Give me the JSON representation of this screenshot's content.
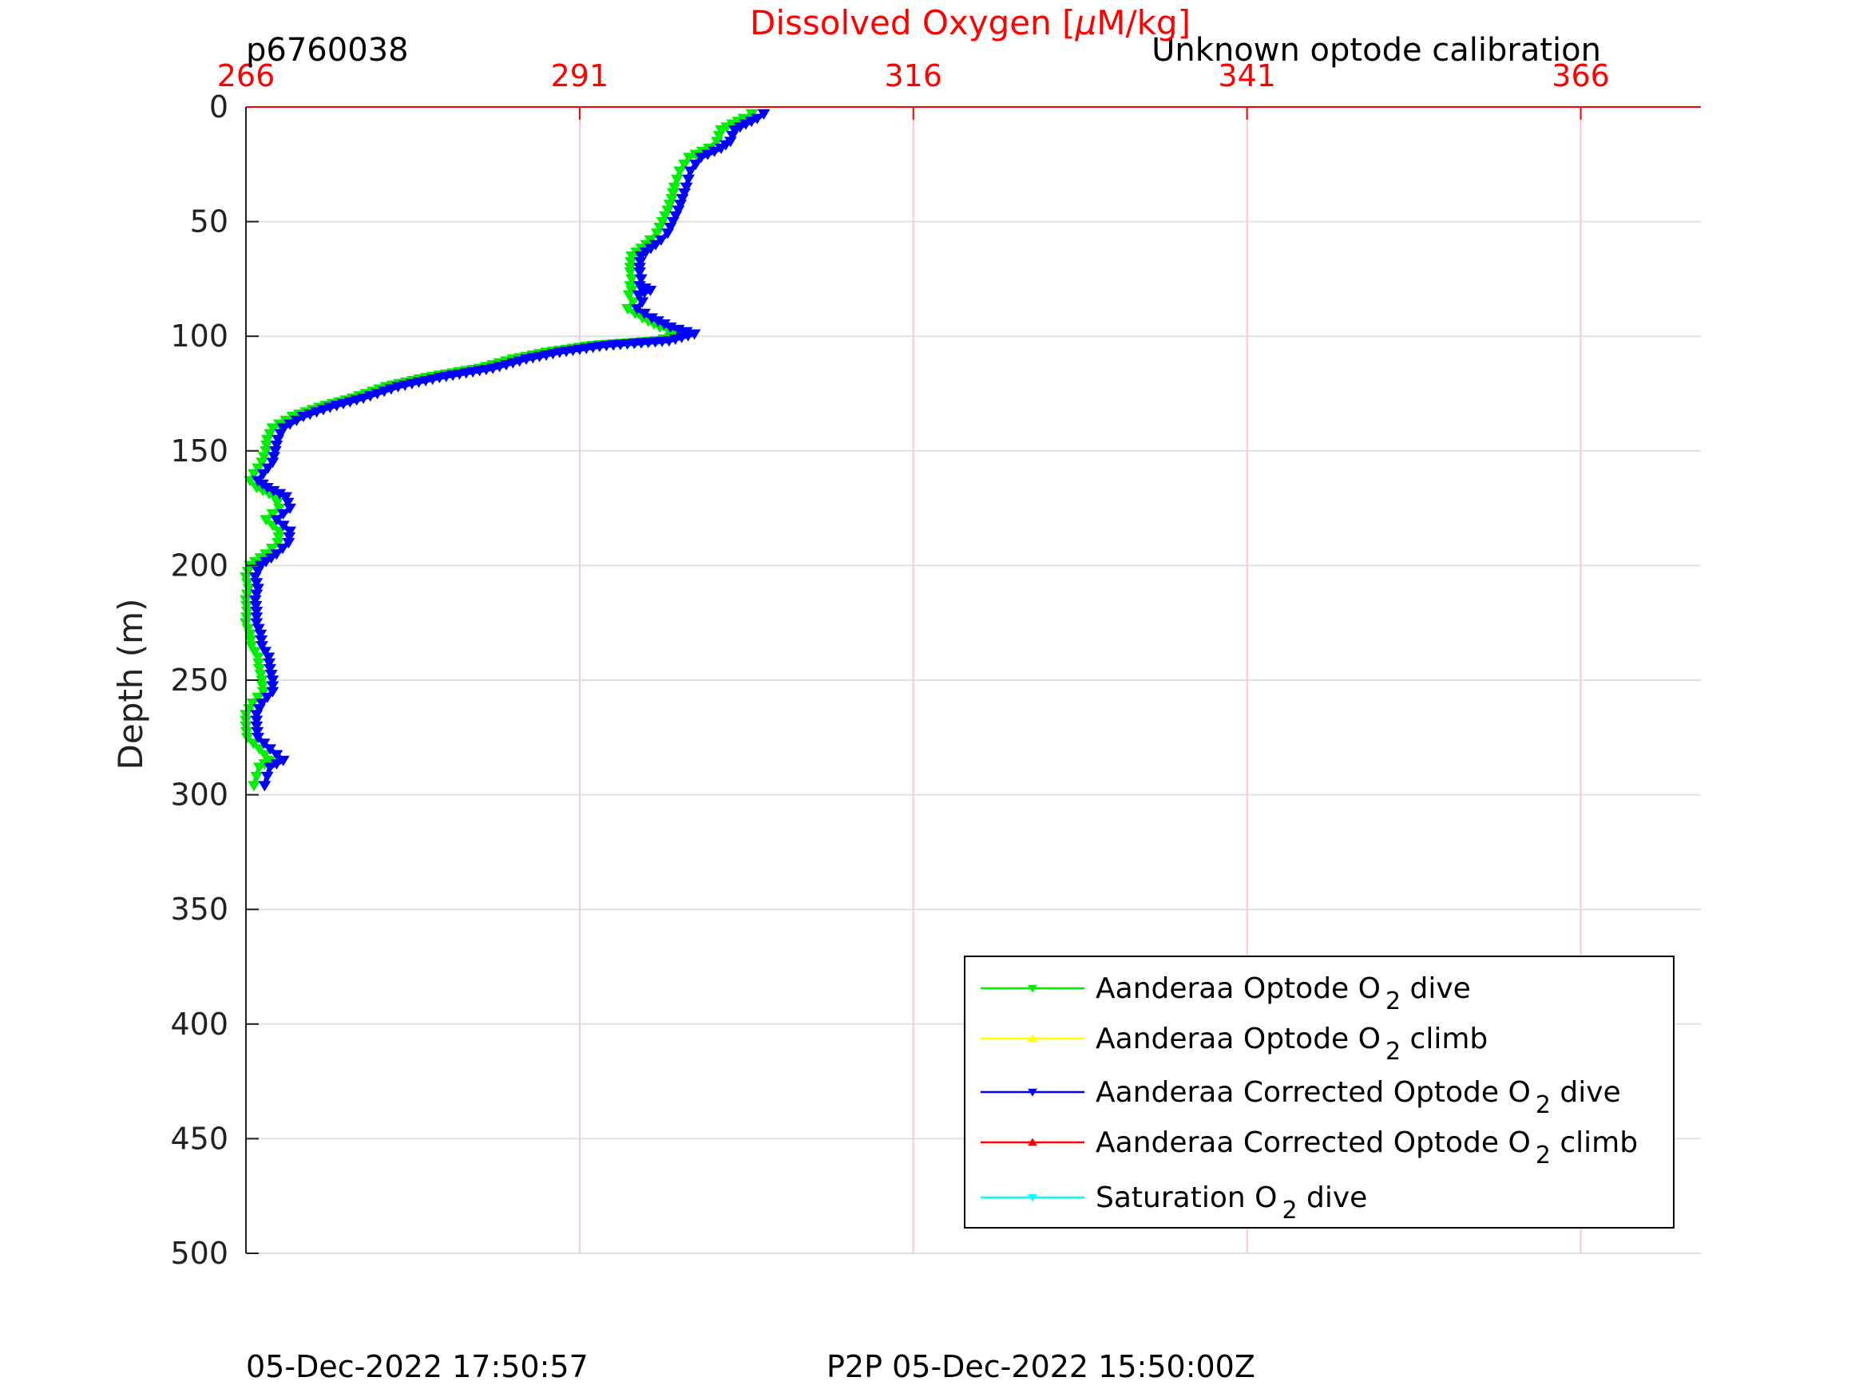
{
  "chart_data": {
    "type": "line",
    "profile_id": "p6760038",
    "calibration_note": "Unknown optode calibration",
    "xlabel_prefix": "Dissolved Oxygen [",
    "xlabel_mu": "μ",
    "xlabel_suffix": "M/kg]",
    "ylabel": "Depth (m)",
    "xlim": [
      266,
      375
    ],
    "ylim": [
      0,
      500
    ],
    "y_reversed": true,
    "x_axis_position": "top",
    "x_ticks": [
      266,
      291,
      316,
      341,
      366
    ],
    "y_ticks": [
      0,
      50,
      100,
      150,
      200,
      250,
      300,
      350,
      400,
      450,
      500
    ],
    "grid": true,
    "legend_position": "bottom-right",
    "colors": {
      "axis_x": "#ff0000",
      "grid_x": "#ffc8c8",
      "grid_y": "#e0e0e0",
      "optode_dive": "#00ee00",
      "optode_climb": "#ffff00",
      "corrected_dive": "#0000ff",
      "corrected_climb": "#ff0000",
      "saturation_dive": "#00ffff"
    },
    "legend": [
      {
        "key": "optode_dive",
        "pre": "Aanderaa Optode O",
        "sub": "2",
        "post": " dive",
        "marker": "down"
      },
      {
        "key": "optode_climb",
        "pre": "Aanderaa Optode O",
        "sub": "2",
        "post": " climb",
        "marker": "up"
      },
      {
        "key": "corrected_dive",
        "pre": "Aanderaa Corrected Optode O",
        "sub": "2",
        "post": " dive",
        "marker": "down"
      },
      {
        "key": "corrected_climb",
        "pre": "Aanderaa Corrected Optode O",
        "sub": "2",
        "post": " climb",
        "marker": "up"
      },
      {
        "key": "saturation_dive",
        "pre": "Saturation O",
        "sub": "2",
        "post": " dive",
        "marker": "down"
      }
    ],
    "series": [
      {
        "key": "optode_dive",
        "name": "Aanderaa Optode O2 dive",
        "x": [
          303.9,
          303.3,
          301.6,
          301.3,
          300.7,
          299.2,
          298.5,
          298.1,
          297.9,
          297.6,
          297.2,
          296.8,
          296.3,
          296.0,
          294.9,
          294.8,
          294.8,
          294.9,
          294.8,
          294.9,
          294.7,
          295.0,
          294.6,
          295.7,
          297.0,
          298.8,
          296.8,
          292.0,
          288.5,
          286.0,
          283.5,
          279.5,
          276.5,
          274.0,
          271.5,
          269.5,
          268.0,
          267.6,
          267.5,
          267.2,
          266.6,
          266.3,
          266.8,
          268.2,
          268.5,
          267.5,
          268.5,
          268.4,
          267.5,
          266.3,
          266.0,
          266.2,
          266.0,
          266.1,
          266.0,
          266.3,
          266.4,
          266.9,
          267.0,
          267.2,
          267.3,
          266.5,
          266.0,
          266.0,
          266.1,
          267.0,
          267.8,
          267.0,
          266.8,
          266.6
        ],
        "y": [
          3,
          5,
          10,
          15,
          18,
          22,
          28,
          35,
          40,
          45,
          50,
          55,
          58,
          60,
          65,
          70,
          72,
          75,
          78,
          80,
          82,
          85,
          88,
          92,
          96,
          99,
          102,
          104,
          107,
          110,
          114,
          118,
          122,
          127,
          131,
          135,
          140,
          145,
          150,
          155,
          160,
          163,
          166,
          170,
          175,
          180,
          185,
          190,
          195,
          200,
          205,
          210,
          215,
          220,
          225,
          230,
          235,
          240,
          245,
          250,
          255,
          260,
          265,
          270,
          275,
          280,
          285,
          288,
          292,
          296
        ]
      },
      {
        "key": "corrected_dive",
        "name": "Aanderaa Corrected Optode O2 dive",
        "x": [
          304.8,
          304.3,
          302.6,
          302.3,
          301.6,
          300.1,
          299.3,
          299.0,
          298.7,
          298.4,
          298.0,
          297.6,
          297.1,
          296.7,
          295.6,
          295.5,
          295.5,
          295.6,
          295.5,
          296.3,
          295.4,
          295.7,
          295.3,
          296.4,
          297.8,
          299.6,
          297.7,
          293.0,
          289.5,
          287.0,
          284.5,
          280.5,
          277.4,
          274.8,
          272.3,
          270.3,
          268.8,
          268.4,
          268.2,
          268.0,
          267.3,
          266.9,
          267.6,
          269.0,
          269.3,
          268.3,
          269.3,
          269.2,
          268.3,
          267.1,
          266.7,
          266.9,
          266.7,
          266.8,
          266.8,
          267.1,
          267.2,
          267.7,
          267.8,
          268.0,
          268.0,
          267.2,
          266.8,
          266.8,
          266.9,
          267.8,
          268.8,
          267.8,
          267.6,
          267.4
        ],
        "y": [
          3,
          5,
          10,
          15,
          18,
          22,
          28,
          35,
          40,
          45,
          50,
          55,
          58,
          60,
          65,
          70,
          72,
          75,
          78,
          80,
          82,
          85,
          88,
          92,
          96,
          99,
          102,
          104,
          107,
          110,
          114,
          118,
          122,
          127,
          131,
          135,
          140,
          145,
          150,
          155,
          160,
          163,
          166,
          170,
          175,
          180,
          185,
          190,
          195,
          200,
          205,
          210,
          215,
          220,
          225,
          230,
          235,
          240,
          245,
          250,
          255,
          260,
          265,
          270,
          275,
          280,
          285,
          288,
          292,
          296
        ]
      }
    ]
  },
  "footer": {
    "left_timestamp": "05-Dec-2022 17:50:57",
    "p2p_timestamp": "P2P 05-Dec-2022 15:50:00Z"
  }
}
